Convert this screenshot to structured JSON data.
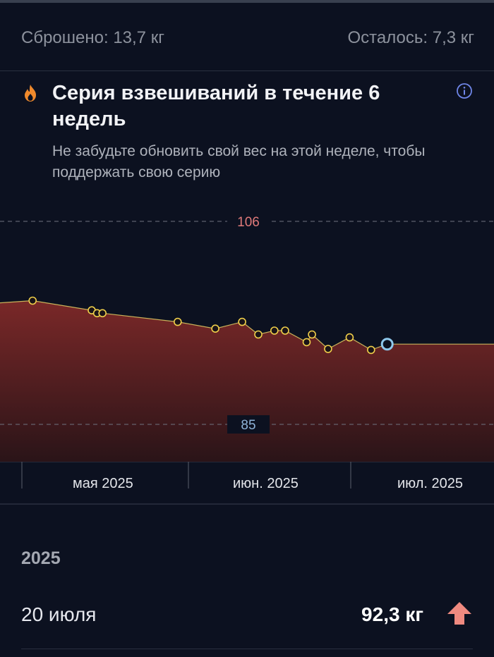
{
  "summary": {
    "lost": "Сброшено: 13,7 кг",
    "left": "Осталось: 7,3 кг"
  },
  "streak": {
    "icon": "flame-icon",
    "title": "Серия взвешиваний в течение 6 недель",
    "subtitle": "Не забудьте обновить свой вес на этой неделе, чтобы поддержать свою серию",
    "info_icon": "info-icon"
  },
  "chart_data": {
    "type": "area",
    "reference_lines": [
      {
        "value": 106,
        "label": "106",
        "color": "#e07a7a"
      },
      {
        "value": 85,
        "label": "85",
        "color": "#8fb3d9"
      }
    ],
    "x_tick_labels": [
      "мая 2025",
      "июн. 2025",
      "июл. 2025"
    ],
    "points": [
      {
        "x": "2025-04-17",
        "y": 97.2,
        "marker": false
      },
      {
        "x": "2025-05-03",
        "y": 97.8,
        "marker": true
      },
      {
        "x": "2025-05-14",
        "y": 96.8,
        "marker": true
      },
      {
        "x": "2025-05-15",
        "y": 96.5,
        "marker": true
      },
      {
        "x": "2025-05-16",
        "y": 96.5,
        "marker": true
      },
      {
        "x": "2025-05-30",
        "y": 95.6,
        "marker": true
      },
      {
        "x": "2025-06-06",
        "y": 94.9,
        "marker": true
      },
      {
        "x": "2025-06-11",
        "y": 95.6,
        "marker": true
      },
      {
        "x": "2025-06-14",
        "y": 94.3,
        "marker": true
      },
      {
        "x": "2025-06-17",
        "y": 94.7,
        "marker": true
      },
      {
        "x": "2025-06-19",
        "y": 94.7,
        "marker": true
      },
      {
        "x": "2025-06-23",
        "y": 93.5,
        "marker": true
      },
      {
        "x": "2025-06-24",
        "y": 94.3,
        "marker": true
      },
      {
        "x": "2025-06-27",
        "y": 92.8,
        "marker": true
      },
      {
        "x": "2025-07-01",
        "y": 94.0,
        "marker": true
      },
      {
        "x": "2025-07-05",
        "y": 92.7,
        "marker": true
      },
      {
        "x": "2025-07-08",
        "y": 93.3,
        "marker": true,
        "current": true
      },
      {
        "x": "2025-07-15",
        "y": 93.3,
        "marker": false
      }
    ],
    "colors": {
      "line": "#c9b25a",
      "marker": "#f0cf4a",
      "current_marker": "#8ec8ec",
      "fill_top": "#7a2828",
      "fill_bottom": "#2a1418"
    }
  },
  "history": {
    "year": "2025",
    "entries": [
      {
        "date": "20 июля",
        "weight": "92,3 кг",
        "trend_icon": "arrow-up-icon"
      }
    ]
  }
}
